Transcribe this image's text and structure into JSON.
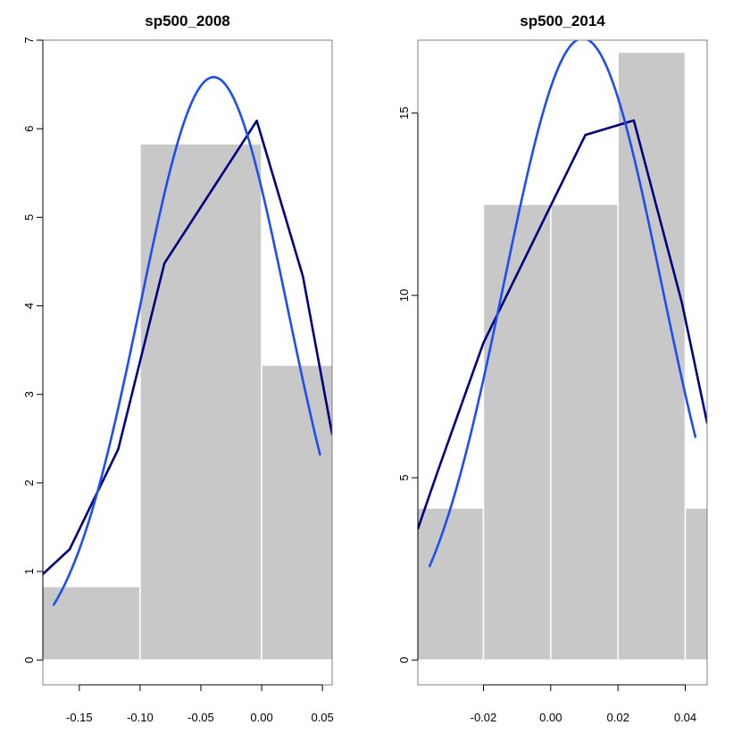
{
  "chart_data": [
    {
      "type": "bar",
      "title": "sp500_2008",
      "xlim": [
        -0.18,
        0.058
      ],
      "ylim": [
        -0.28,
        7.0
      ],
      "xticks": [
        -0.15,
        -0.1,
        -0.05,
        0.0,
        0.05
      ],
      "xtick_labels": [
        "-0.15",
        "-0.10",
        "-0.05",
        "0.00",
        "0.05"
      ],
      "yticks": [
        0,
        1,
        2,
        3,
        4,
        5,
        6,
        7
      ],
      "ytick_labels": [
        "0",
        "1",
        "2",
        "3",
        "4",
        "5",
        "6",
        "7"
      ],
      "histogram": {
        "breaks": [
          -0.2,
          -0.1,
          0.0,
          0.1
        ],
        "density": [
          0.83,
          5.83,
          3.33
        ],
        "color": "#c8c8c8"
      },
      "series": [
        {
          "color": "#000080",
          "x": [
            -0.18,
            -0.158,
            -0.118,
            -0.08,
            -0.004,
            0.034,
            0.058
          ],
          "y": [
            0.97,
            1.25,
            2.38,
            4.48,
            6.09,
            4.33,
            2.55
          ]
        },
        {
          "color": "#1c4ef0",
          "normal": {
            "mean": -0.0395,
            "sd": 0.0606,
            "x_from": -0.171,
            "x_to": 0.048
          }
        }
      ]
    },
    {
      "type": "bar",
      "title": "sp500_2014",
      "xlim": [
        -0.0395,
        0.0465
      ],
      "ylim": [
        -0.68,
        17.0
      ],
      "xticks": [
        -0.02,
        0.0,
        0.02,
        0.04
      ],
      "xtick_labels": [
        "-0.02",
        "0.00",
        "0.02",
        "0.04"
      ],
      "yticks": [
        0,
        5,
        10,
        15
      ],
      "ytick_labels": [
        "0",
        "5",
        "10",
        "15"
      ],
      "histogram": {
        "breaks": [
          -0.04,
          -0.02,
          0.0,
          0.02,
          0.04,
          0.06
        ],
        "density": [
          4.17,
          12.5,
          12.5,
          16.67,
          4.17
        ],
        "color": "#c8c8c8"
      },
      "series": [
        {
          "color": "#000080",
          "x": [
            -0.0395,
            -0.0335,
            -0.02,
            0.0103,
            0.0247,
            0.039,
            0.0465
          ],
          "y": [
            3.6,
            5.2,
            8.7,
            14.4,
            14.8,
            9.8,
            6.5
          ]
        },
        {
          "color": "#1c4ef0",
          "normal": {
            "mean": 0.0095,
            "sd": 0.0234,
            "x_from": -0.036,
            "x_to": 0.043
          }
        }
      ]
    }
  ]
}
